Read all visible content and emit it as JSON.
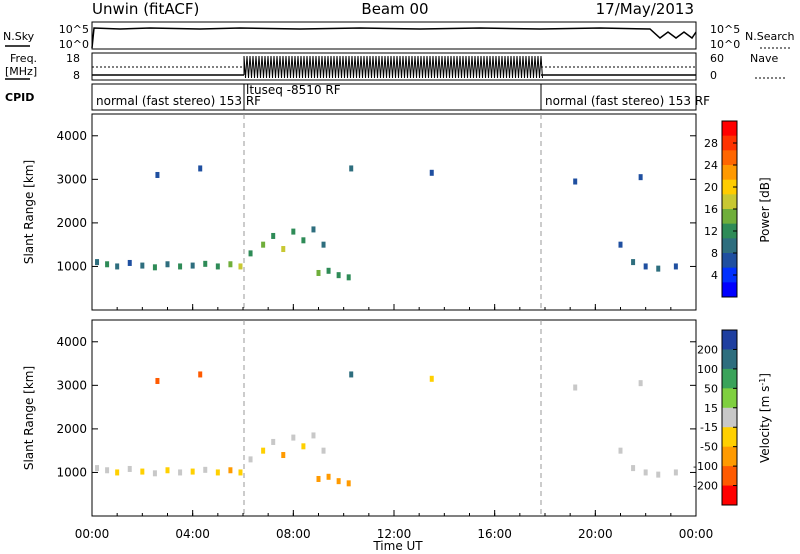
{
  "header": {
    "station": "Unwin (fitACF)",
    "beam": "Beam 00",
    "date": "17/May/2013"
  },
  "left_labels": {
    "nsky": "N.Sky",
    "freq": "Freq.",
    "freq_unit": "[MHz]",
    "cpid": "CPID"
  },
  "right_labels": {
    "nsearch": "N.Search",
    "nave": "Nave"
  },
  "noise_panel": {
    "left_ticks": [
      "10^5",
      "10^0"
    ],
    "right_ticks": [
      "10^5",
      "10^0"
    ]
  },
  "freq_panel": {
    "left_ticks": [
      "18",
      "8"
    ],
    "right_ticks": [
      "60",
      "0"
    ]
  },
  "cpid_panel": {
    "segments": [
      {
        "label": "normal (fast stereo) 153 RF",
        "start_h": 0,
        "end_h": 6
      },
      {
        "label": "ltuseq -8510 RF",
        "start_h": 6,
        "end_h": 18
      },
      {
        "label": "normal (fast stereo) 153 RF",
        "start_h": 18,
        "end_h": 24
      }
    ]
  },
  "x_axis": {
    "label": "Time UT",
    "ticks": [
      "00:00",
      "04:00",
      "08:00",
      "12:00",
      "16:00",
      "20:00",
      "00:00"
    ]
  },
  "power_panel": {
    "ylabel": "Slant Range [km]",
    "yticks": [
      "4000",
      "3000",
      "2000",
      "1000"
    ]
  },
  "velocity_panel": {
    "ylabel": "Slant Range [km]",
    "yticks": [
      "4000",
      "3000",
      "2000",
      "1000"
    ]
  },
  "power_colorbar": {
    "label": "Power [dB]",
    "ticks": [
      "28",
      "24",
      "20",
      "16",
      "12",
      "8",
      "4"
    ],
    "colors": [
      "#ff0000",
      "#ff3300",
      "#ff6600",
      "#ff9900",
      "#ffcc00",
      "#c8c832",
      "#6fae3a",
      "#2e8b57",
      "#2e6e7e",
      "#1f4fa0",
      "#0030ff",
      "#0000ff"
    ]
  },
  "velocity_colorbar": {
    "label": "Velocity [m s^-1]",
    "ticks": [
      "200",
      "100",
      "50",
      "15",
      "-15",
      "-50",
      "-100",
      "-200"
    ],
    "colors": [
      "#1f3fa0",
      "#2e6e7e",
      "#3aa35a",
      "#7fd040",
      "#c8c8c8",
      "#ffd000",
      "#ff9a00",
      "#ff5a00",
      "#ff0000"
    ]
  },
  "chart_data": [
    {
      "type": "scatter",
      "title": "Power",
      "xlabel": "Time UT",
      "ylabel": "Slant Range [km]",
      "xlim": [
        0,
        24
      ],
      "ylim": [
        0,
        4500
      ],
      "points": [
        {
          "x": 0.2,
          "y": 1100,
          "v": 8
        },
        {
          "x": 0.6,
          "y": 1050,
          "v": 10
        },
        {
          "x": 1.0,
          "y": 1000,
          "v": 8
        },
        {
          "x": 1.5,
          "y": 1080,
          "v": 6
        },
        {
          "x": 2.0,
          "y": 1020,
          "v": 8
        },
        {
          "x": 2.5,
          "y": 980,
          "v": 10
        },
        {
          "x": 3.0,
          "y": 1050,
          "v": 8
        },
        {
          "x": 3.5,
          "y": 1000,
          "v": 12
        },
        {
          "x": 4.0,
          "y": 1020,
          "v": 8
        },
        {
          "x": 4.5,
          "y": 1060,
          "v": 10
        },
        {
          "x": 5.0,
          "y": 1000,
          "v": 12
        },
        {
          "x": 5.5,
          "y": 1050,
          "v": 14
        },
        {
          "x": 5.9,
          "y": 1000,
          "v": 16
        },
        {
          "x": 6.3,
          "y": 1300,
          "v": 12
        },
        {
          "x": 6.8,
          "y": 1500,
          "v": 14
        },
        {
          "x": 7.2,
          "y": 1700,
          "v": 12
        },
        {
          "x": 7.6,
          "y": 1400,
          "v": 16
        },
        {
          "x": 8.0,
          "y": 1800,
          "v": 12
        },
        {
          "x": 8.4,
          "y": 1600,
          "v": 10
        },
        {
          "x": 8.8,
          "y": 1850,
          "v": 8
        },
        {
          "x": 9.2,
          "y": 1500,
          "v": 8
        },
        {
          "x": 9.0,
          "y": 850,
          "v": 14
        },
        {
          "x": 9.4,
          "y": 900,
          "v": 12
        },
        {
          "x": 9.8,
          "y": 800,
          "v": 12
        },
        {
          "x": 10.2,
          "y": 750,
          "v": 10
        },
        {
          "x": 2.6,
          "y": 3100,
          "v": 6
        },
        {
          "x": 4.3,
          "y": 3250,
          "v": 6
        },
        {
          "x": 10.3,
          "y": 3250,
          "v": 8
        },
        {
          "x": 13.5,
          "y": 3150,
          "v": 6
        },
        {
          "x": 19.2,
          "y": 2950,
          "v": 6
        },
        {
          "x": 21.8,
          "y": 3050,
          "v": 6
        },
        {
          "x": 21.0,
          "y": 1500,
          "v": 6
        },
        {
          "x": 21.5,
          "y": 1100,
          "v": 8
        },
        {
          "x": 22.0,
          "y": 1000,
          "v": 6
        },
        {
          "x": 22.5,
          "y": 950,
          "v": 8
        },
        {
          "x": 23.2,
          "y": 1000,
          "v": 6
        }
      ]
    },
    {
      "type": "scatter",
      "title": "Velocity",
      "xlabel": "Time UT",
      "ylabel": "Slant Range [km]",
      "xlim": [
        0,
        24
      ],
      "ylim": [
        0,
        4500
      ],
      "points": [
        {
          "x": 0.2,
          "y": 1100,
          "v": 0
        },
        {
          "x": 0.6,
          "y": 1050,
          "v": -10
        },
        {
          "x": 1.0,
          "y": 1000,
          "v": -20
        },
        {
          "x": 1.5,
          "y": 1080,
          "v": 0
        },
        {
          "x": 2.0,
          "y": 1020,
          "v": -30
        },
        {
          "x": 2.5,
          "y": 980,
          "v": -10
        },
        {
          "x": 3.0,
          "y": 1050,
          "v": -40
        },
        {
          "x": 3.5,
          "y": 1000,
          "v": 0
        },
        {
          "x": 4.0,
          "y": 1020,
          "v": -30
        },
        {
          "x": 4.5,
          "y": 1060,
          "v": -10
        },
        {
          "x": 5.0,
          "y": 1000,
          "v": -40
        },
        {
          "x": 5.5,
          "y": 1050,
          "v": -60
        },
        {
          "x": 5.9,
          "y": 1000,
          "v": -50
        },
        {
          "x": 6.3,
          "y": 1300,
          "v": 0
        },
        {
          "x": 6.8,
          "y": 1500,
          "v": -40
        },
        {
          "x": 7.2,
          "y": 1700,
          "v": 0
        },
        {
          "x": 7.6,
          "y": 1400,
          "v": -60
        },
        {
          "x": 8.0,
          "y": 1800,
          "v": 0
        },
        {
          "x": 8.4,
          "y": 1600,
          "v": -30
        },
        {
          "x": 8.8,
          "y": 1850,
          "v": 0
        },
        {
          "x": 9.2,
          "y": 1500,
          "v": 0
        },
        {
          "x": 9.0,
          "y": 850,
          "v": -90
        },
        {
          "x": 9.4,
          "y": 900,
          "v": -80
        },
        {
          "x": 9.8,
          "y": 800,
          "v": -70
        },
        {
          "x": 10.2,
          "y": 750,
          "v": -60
        },
        {
          "x": 2.6,
          "y": 3100,
          "v": -200
        },
        {
          "x": 4.3,
          "y": 3250,
          "v": -150
        },
        {
          "x": 10.3,
          "y": 3250,
          "v": 100
        },
        {
          "x": 13.5,
          "y": 3150,
          "v": -30
        },
        {
          "x": 19.2,
          "y": 2950,
          "v": 0
        },
        {
          "x": 21.8,
          "y": 3050,
          "v": 0
        },
        {
          "x": 21.0,
          "y": 1500,
          "v": 0
        },
        {
          "x": 21.5,
          "y": 1100,
          "v": 0
        },
        {
          "x": 22.0,
          "y": 1000,
          "v": -10
        },
        {
          "x": 22.5,
          "y": 950,
          "v": 0
        },
        {
          "x": 23.2,
          "y": 1000,
          "v": -10
        }
      ]
    }
  ]
}
